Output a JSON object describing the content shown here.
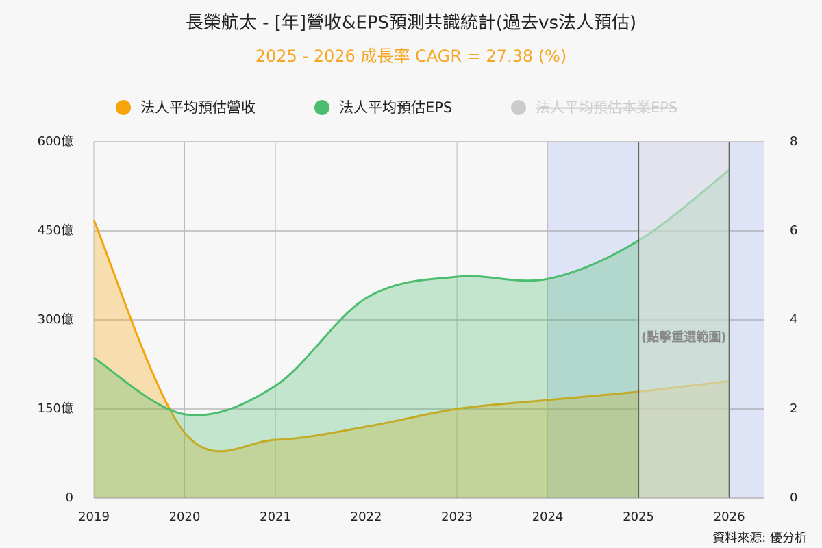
{
  "chart_data": {
    "type": "area",
    "title": "長榮航太 - [年]營收&EPS預測共識統計(過去vs法人預估)",
    "subtitle": "2025 - 2026 成長率 CAGR = 27.38 (%)",
    "x": [
      2019,
      2020,
      2021,
      2022,
      2023,
      2024,
      2025,
      2026
    ],
    "xlim": [
      2019,
      2026.38
    ],
    "xticks": [
      2019,
      2020,
      2021,
      2022,
      2023,
      2024,
      2025,
      2026
    ],
    "series": [
      {
        "name": "法人平均預估營收",
        "color": "#f5a50a",
        "values": [
          468,
          110,
          98,
          120,
          150,
          165,
          179,
          197
        ]
      },
      {
        "name": "法人平均預估EPS",
        "color": "#4cbd6e",
        "axis": "y2",
        "values": [
          3.15,
          1.88,
          2.52,
          4.49,
          4.97,
          4.92,
          5.78,
          7.37
        ]
      },
      {
        "name": "法人平均預估本業EPS",
        "color": "#cccccc",
        "visible": false
      }
    ],
    "ylim": [
      0,
      600
    ],
    "yticks": [
      0,
      {
        "value": 150,
        "label": "150億"
      },
      {
        "value": 300,
        "label": "300億"
      },
      {
        "value": 450,
        "label": "450億"
      },
      {
        "value": 600,
        "label": "600億"
      }
    ],
    "y2lim": [
      0,
      8
    ],
    "y2ticks": [
      0,
      2,
      4,
      6,
      8
    ],
    "highlight_from": 2024,
    "forecast": [
      2025,
      2026
    ],
    "annotation": "(點擊重選範圍)",
    "source": "資料來源: 優分析",
    "grid": true
  }
}
